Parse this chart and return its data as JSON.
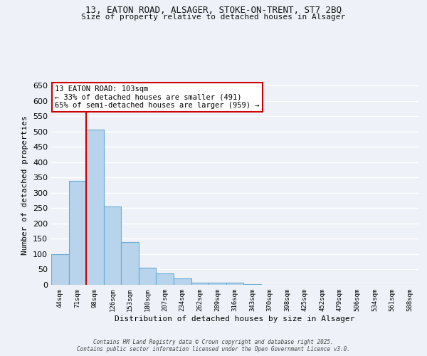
{
  "title_line1": "13, EATON ROAD, ALSAGER, STOKE-ON-TRENT, ST7 2BQ",
  "title_line2": "Size of property relative to detached houses in Alsager",
  "xlabel": "Distribution of detached houses by size in Alsager",
  "ylabel": "Number of detached properties",
  "categories": [
    "44sqm",
    "71sqm",
    "98sqm",
    "126sqm",
    "153sqm",
    "180sqm",
    "207sqm",
    "234sqm",
    "262sqm",
    "289sqm",
    "316sqm",
    "343sqm",
    "370sqm",
    "398sqm",
    "425sqm",
    "452sqm",
    "479sqm",
    "506sqm",
    "534sqm",
    "561sqm",
    "588sqm"
  ],
  "values": [
    100,
    340,
    505,
    255,
    140,
    55,
    38,
    22,
    8,
    8,
    8,
    3,
    0,
    0,
    0,
    0,
    0,
    0,
    0,
    0,
    0
  ],
  "bar_color": "#b8d4ec",
  "bar_edge_color": "#6aaad4",
  "vline_bar_index": 2,
  "vline_color": "#cc0000",
  "annotation_text": "13 EATON ROAD: 103sqm\n← 33% of detached houses are smaller (491)\n65% of semi-detached houses are larger (959) →",
  "annotation_box_color": "#ffffff",
  "annotation_box_edge": "#cc0000",
  "ylim": [
    0,
    650
  ],
  "yticks": [
    0,
    50,
    100,
    150,
    200,
    250,
    300,
    350,
    400,
    450,
    500,
    550,
    600,
    650
  ],
  "bg_color": "#eef2f8",
  "grid_color": "#ffffff",
  "footer": "Contains HM Land Registry data © Crown copyright and database right 2025.\nContains public sector information licensed under the Open Government Licence v3.0."
}
